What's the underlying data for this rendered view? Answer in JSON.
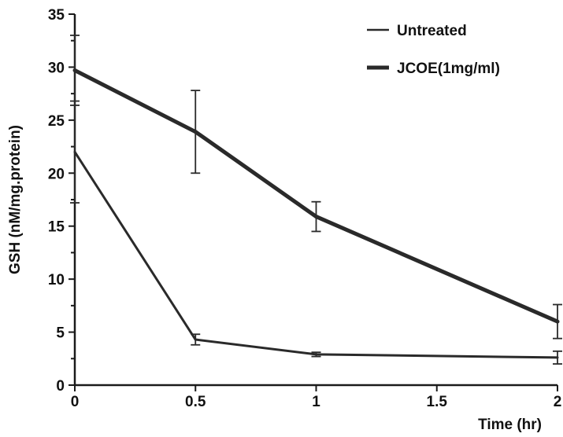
{
  "chart_data": {
    "type": "line",
    "title": "",
    "xlabel": "Time (hr)",
    "ylabel": "GSH (nM/mg.protein)",
    "xlim": [
      0,
      2
    ],
    "ylim": [
      0,
      35
    ],
    "x_ticks": [
      0,
      0.5,
      1,
      1.5,
      2
    ],
    "x_tick_labels": [
      "0",
      "0.5",
      "1",
      "1.5",
      "2"
    ],
    "y_ticks": [
      0,
      5,
      10,
      15,
      20,
      25,
      30,
      35
    ],
    "y_tick_labels": [
      "0",
      "5",
      "10",
      "15",
      "20",
      "25",
      "30",
      "35"
    ],
    "grid": false,
    "legend_position": "top-right",
    "series": [
      {
        "name": "Untreated",
        "color": "#2a2a2a",
        "line_width": "thin",
        "x": [
          0,
          0.5,
          1,
          2
        ],
        "y": [
          22,
          4.3,
          2.9,
          2.6
        ],
        "error": [
          4.8,
          0.5,
          0.2,
          0.6
        ]
      },
      {
        "name": "JCOE(1mg/ml)",
        "color": "#2a2a2a",
        "line_width": "thick",
        "x": [
          0,
          0.5,
          1,
          2
        ],
        "y": [
          29.7,
          23.9,
          15.9,
          6
        ],
        "error": [
          3.3,
          3.9,
          1.4,
          1.6
        ]
      }
    ]
  }
}
